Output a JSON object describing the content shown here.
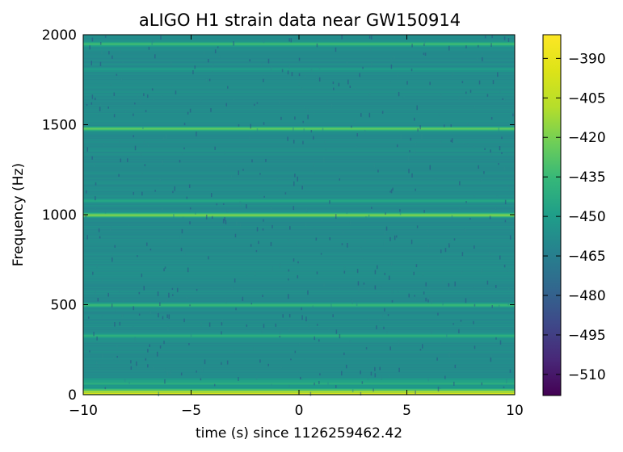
{
  "chart_data": {
    "type": "heatmap",
    "title": "aLIGO H1 strain data near GW150914",
    "xlabel": "time (s) since 1126259462.42",
    "ylabel": "Frequency (Hz)",
    "xlim": [
      -10,
      10
    ],
    "ylim": [
      0,
      2000
    ],
    "x_ticks": [
      "−10",
      "−5",
      "0",
      "5",
      "10"
    ],
    "x_tick_values": [
      -10,
      -5,
      0,
      5,
      10
    ],
    "y_ticks": [
      "0",
      "500",
      "1000",
      "1500",
      "2000"
    ],
    "y_tick_values": [
      0,
      500,
      1000,
      1500,
      2000
    ],
    "colormap": "viridis",
    "color_range": [
      -518,
      -381
    ],
    "colorbar_ticks": [
      "−390",
      "−405",
      "−420",
      "−435",
      "−450",
      "−465",
      "−480",
      "−495",
      "−510"
    ],
    "colorbar_tick_values": [
      -390,
      -405,
      -420,
      -435,
      -450,
      -465,
      -480,
      -495,
      -510
    ],
    "background_level": -458,
    "frequency_profile": [
      {
        "f": 0,
        "v": -395
      },
      {
        "f": 10,
        "v": -390
      },
      {
        "f": 20,
        "v": -400
      },
      {
        "f": 30,
        "v": -430
      },
      {
        "f": 50,
        "v": -452
      },
      {
        "f": 65,
        "v": -438
      },
      {
        "f": 80,
        "v": -444
      },
      {
        "f": 110,
        "v": -458
      },
      {
        "f": 330,
        "v": -436
      },
      {
        "f": 500,
        "v": -430
      },
      {
        "f": 1000,
        "v": -413
      },
      {
        "f": 1080,
        "v": -445
      },
      {
        "f": 1480,
        "v": -418
      },
      {
        "f": 1810,
        "v": -450
      },
      {
        "f": 1950,
        "v": -430
      }
    ]
  }
}
